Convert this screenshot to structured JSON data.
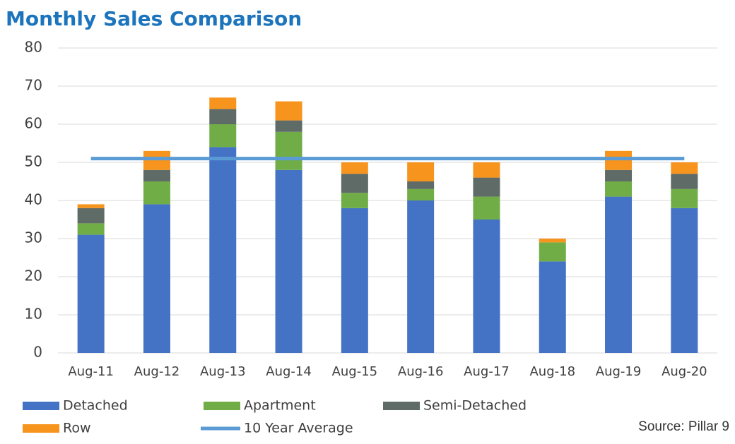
{
  "chart_data": {
    "type": "bar",
    "stacked": true,
    "title": "Monthly Sales Comparison",
    "source": "Source: Pillar 9",
    "categories": [
      "Aug-11",
      "Aug-12",
      "Aug-13",
      "Aug-14",
      "Aug-15",
      "Aug-16",
      "Aug-17",
      "Aug-18",
      "Aug-19",
      "Aug-20"
    ],
    "series": [
      {
        "name": "Detached",
        "color": "#4472c4",
        "values": [
          31,
          39,
          54,
          48,
          38,
          40,
          35,
          24,
          41,
          38
        ]
      },
      {
        "name": "Apartment",
        "color": "#70ad47",
        "values": [
          3,
          6,
          6,
          10,
          4,
          3,
          6,
          5,
          4,
          5
        ]
      },
      {
        "name": "Semi-Detached",
        "color": "#5f6b66",
        "values": [
          4,
          3,
          4,
          3,
          5,
          2,
          5,
          0,
          3,
          4
        ]
      },
      {
        "name": "Row",
        "color": "#f7941d",
        "values": [
          1,
          5,
          3,
          5,
          3,
          5,
          4,
          1,
          5,
          3
        ]
      },
      {
        "name": "10 Year Average",
        "color": "#5b9bd5",
        "type": "line",
        "values": [
          51,
          51,
          51,
          51,
          51,
          51,
          51,
          51,
          51,
          51
        ]
      }
    ],
    "ylim": [
      0,
      80
    ],
    "yticks": [
      0,
      10,
      20,
      30,
      40,
      50,
      60,
      70,
      80
    ],
    "grid": true,
    "legend": "bottom"
  }
}
